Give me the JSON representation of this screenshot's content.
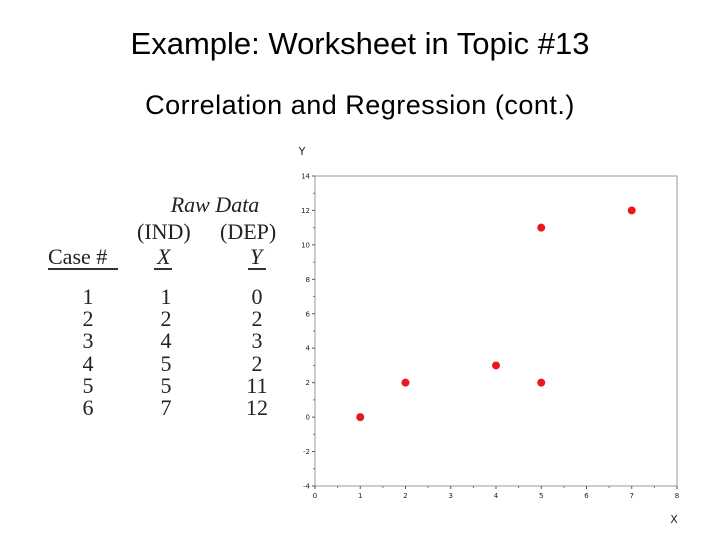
{
  "slide": {
    "title": "Example: Worksheet in Topic #13",
    "subtitle": "Correlation and Regression (cont.)"
  },
  "table": {
    "heading": "Raw Data",
    "groups": [
      "(IND)",
      "(DEP)"
    ],
    "columns": [
      "Case #",
      "X",
      "Y"
    ],
    "rows": [
      {
        "case": "1",
        "x": "1",
        "y": "0"
      },
      {
        "case": "2",
        "x": "2",
        "y": "2"
      },
      {
        "case": "3",
        "x": "4",
        "y": "3"
      },
      {
        "case": "4",
        "x": "5",
        "y": "2"
      },
      {
        "case": "5",
        "x": "5",
        "y": "11"
      },
      {
        "case": "6",
        "x": "7",
        "y": "12"
      }
    ]
  },
  "chart_data": {
    "type": "scatter",
    "xlabel": "X",
    "ylabel": "Y",
    "xlim": [
      0,
      8
    ],
    "ylim": [
      -4,
      14
    ],
    "xticks": [
      "0",
      "1",
      "2",
      "3",
      "4",
      "5",
      "6",
      "7",
      "8"
    ],
    "yticks": [
      "-4",
      "-2",
      "0",
      "2",
      "4",
      "6",
      "8",
      "10",
      "12",
      "14"
    ],
    "grid": false,
    "points": [
      {
        "x": 1,
        "y": 0
      },
      {
        "x": 2,
        "y": 2
      },
      {
        "x": 4,
        "y": 3
      },
      {
        "x": 5,
        "y": 2
      },
      {
        "x": 5,
        "y": 11
      },
      {
        "x": 7,
        "y": 12
      }
    ],
    "marker_color": "#e8191c"
  }
}
